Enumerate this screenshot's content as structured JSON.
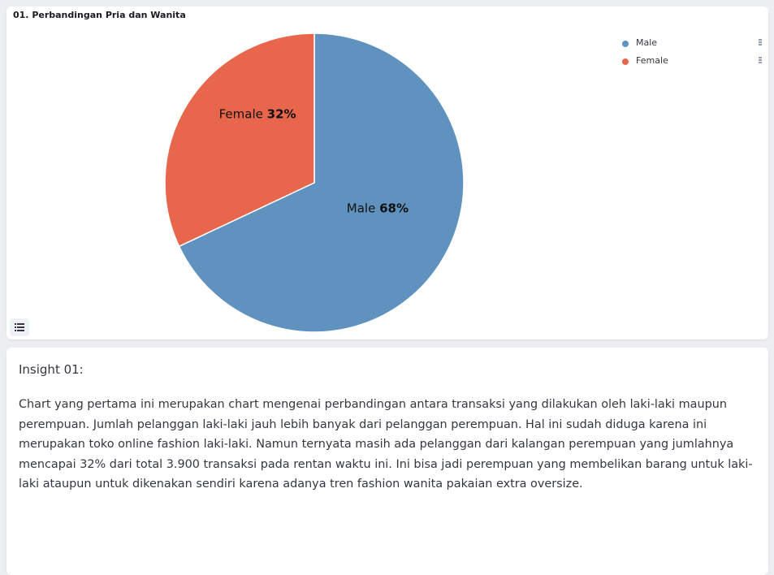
{
  "chart_panel": {
    "title": "01. Perbandingan Pria dan Wanita"
  },
  "chart_data": {
    "type": "pie",
    "title": "01. Perbandingan Pria dan Wanita",
    "slices": [
      {
        "name": "Male",
        "value": 68,
        "color": "#6092c0",
        "label_name": "Male",
        "label_pct": "68%"
      },
      {
        "name": "Female",
        "value": 32,
        "color": "#e7664c",
        "label_name": "Female",
        "label_pct": "32%"
      }
    ],
    "legend": [
      "Male",
      "Female"
    ],
    "legend_placement": "top-right"
  },
  "legend": {
    "items": [
      {
        "label": "Male",
        "color": "#6092c0"
      },
      {
        "label": "Female",
        "color": "#e7664c"
      }
    ]
  },
  "controls": {
    "legend_menu_icon": "vertical-dots-icon",
    "list_toggle_icon": "list-icon"
  },
  "insight": {
    "title": "Insight 01:",
    "body": "Chart yang pertama ini merupakan chart mengenai perbandingan antara transaksi yang dilakukan oleh laki-laki maupun perempuan. Jumlah pelanggan laki-laki jauh lebih banyak dari pelanggan perempuan. Hal ini sudah diduga karena ini merupakan toko online fashion laki-laki. Namun ternyata masih ada pelanggan dari kalangan perempuan yang jumlahnya mencapai 32% dari total 3.900 transaksi pada rentan waktu ini. Ini bisa jadi perempuan yang membelikan barang untuk laki-laki ataupun untuk dikenakan sendiri karena adanya tren fashion wanita pakaian extra oversize."
  }
}
